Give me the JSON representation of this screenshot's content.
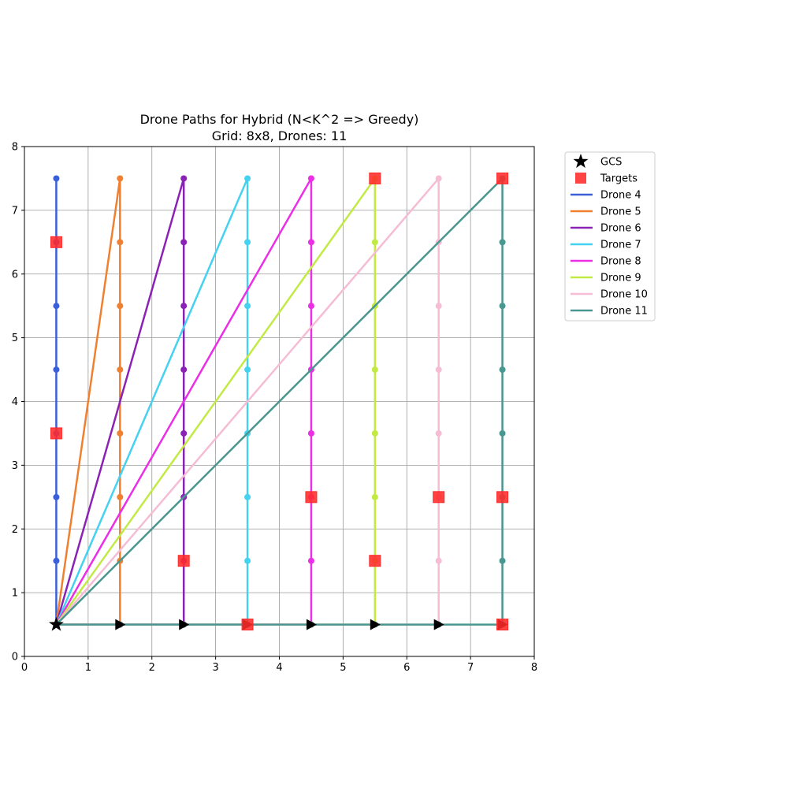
{
  "chart_data": {
    "type": "line",
    "title_line1": "Drone Paths for Hybrid (N<K^2 => Greedy)",
    "title_line2": "Grid: 8x8, Drones: 11",
    "xlabel": "",
    "ylabel": "",
    "xlim": [
      0,
      8
    ],
    "ylim": [
      0,
      8
    ],
    "x_ticks": [
      "0",
      "1",
      "2",
      "3",
      "4",
      "5",
      "6",
      "7",
      "8"
    ],
    "y_ticks": [
      "0",
      "1",
      "2",
      "3",
      "4",
      "5",
      "6",
      "7",
      "8"
    ],
    "grid": true,
    "legend_position": "outside-top-right",
    "gcs": {
      "label": "GCS",
      "x": 0.5,
      "y": 0.5,
      "color": "#000000"
    },
    "targets": {
      "label": "Targets",
      "color": "#ff2a2a",
      "points": [
        [
          0.5,
          6.5
        ],
        [
          0.5,
          3.5
        ],
        [
          2.5,
          1.5
        ],
        [
          3.5,
          0.5
        ],
        [
          4.5,
          2.5
        ],
        [
          5.5,
          7.5
        ],
        [
          5.5,
          1.5
        ],
        [
          6.5,
          2.5
        ],
        [
          7.5,
          7.5
        ],
        [
          7.5,
          2.5
        ],
        [
          7.5,
          0.5
        ]
      ]
    },
    "series": [
      {
        "name": "Drone 4",
        "color": "#3a5fd9",
        "points": [
          [
            0.5,
            0.5
          ],
          [
            0.5,
            1.5
          ],
          [
            0.5,
            2.5
          ],
          [
            0.5,
            3.5
          ],
          [
            0.5,
            4.5
          ],
          [
            0.5,
            5.5
          ],
          [
            0.5,
            6.5
          ],
          [
            0.5,
            7.5
          ]
        ]
      },
      {
        "name": "Drone 5",
        "color": "#f0802f",
        "points": [
          [
            0.5,
            0.5
          ],
          [
            1.5,
            0.5
          ],
          [
            1.5,
            1.5
          ],
          [
            1.5,
            2.5
          ],
          [
            1.5,
            3.5
          ],
          [
            1.5,
            4.5
          ],
          [
            1.5,
            5.5
          ],
          [
            1.5,
            6.5
          ],
          [
            1.5,
            7.5
          ],
          [
            0.5,
            0.5
          ]
        ]
      },
      {
        "name": "Drone 6",
        "color": "#8a22b5",
        "points": [
          [
            0.5,
            0.5
          ],
          [
            1.5,
            0.5
          ],
          [
            2.5,
            0.5
          ],
          [
            2.5,
            1.5
          ],
          [
            2.5,
            2.5
          ],
          [
            2.5,
            3.5
          ],
          [
            2.5,
            4.5
          ],
          [
            2.5,
            5.5
          ],
          [
            2.5,
            6.5
          ],
          [
            2.5,
            7.5
          ],
          [
            0.5,
            0.5
          ]
        ]
      },
      {
        "name": "Drone 7",
        "color": "#45d1f0",
        "points": [
          [
            0.5,
            0.5
          ],
          [
            1.5,
            0.5
          ],
          [
            2.5,
            0.5
          ],
          [
            3.5,
            0.5
          ],
          [
            3.5,
            1.5
          ],
          [
            3.5,
            2.5
          ],
          [
            3.5,
            3.5
          ],
          [
            3.5,
            4.5
          ],
          [
            3.5,
            5.5
          ],
          [
            3.5,
            6.5
          ],
          [
            3.5,
            7.5
          ],
          [
            0.5,
            0.5
          ]
        ]
      },
      {
        "name": "Drone 8",
        "color": "#ea2fe5",
        "points": [
          [
            0.5,
            0.5
          ],
          [
            1.5,
            0.5
          ],
          [
            2.5,
            0.5
          ],
          [
            3.5,
            0.5
          ],
          [
            4.5,
            0.5
          ],
          [
            4.5,
            1.5
          ],
          [
            4.5,
            2.5
          ],
          [
            4.5,
            3.5
          ],
          [
            4.5,
            4.5
          ],
          [
            4.5,
            5.5
          ],
          [
            4.5,
            6.5
          ],
          [
            4.5,
            7.5
          ],
          [
            0.5,
            0.5
          ]
        ]
      },
      {
        "name": "Drone 9",
        "color": "#c2ea45",
        "points": [
          [
            0.5,
            0.5
          ],
          [
            1.5,
            0.5
          ],
          [
            2.5,
            0.5
          ],
          [
            3.5,
            0.5
          ],
          [
            4.5,
            0.5
          ],
          [
            5.5,
            0.5
          ],
          [
            5.5,
            1.5
          ],
          [
            5.5,
            2.5
          ],
          [
            5.5,
            3.5
          ],
          [
            5.5,
            4.5
          ],
          [
            5.5,
            5.5
          ],
          [
            5.5,
            6.5
          ],
          [
            5.5,
            7.5
          ],
          [
            0.5,
            0.5
          ]
        ]
      },
      {
        "name": "Drone 10",
        "color": "#f5bcd4",
        "points": [
          [
            0.5,
            0.5
          ],
          [
            1.5,
            0.5
          ],
          [
            2.5,
            0.5
          ],
          [
            3.5,
            0.5
          ],
          [
            4.5,
            0.5
          ],
          [
            5.5,
            0.5
          ],
          [
            6.5,
            0.5
          ],
          [
            6.5,
            1.5
          ],
          [
            6.5,
            2.5
          ],
          [
            6.5,
            3.5
          ],
          [
            6.5,
            4.5
          ],
          [
            6.5,
            5.5
          ],
          [
            6.5,
            6.5
          ],
          [
            6.5,
            7.5
          ],
          [
            0.5,
            0.5
          ]
        ]
      },
      {
        "name": "Drone 11",
        "color": "#4a9690",
        "points": [
          [
            0.5,
            0.5
          ],
          [
            1.5,
            0.5
          ],
          [
            2.5,
            0.5
          ],
          [
            3.5,
            0.5
          ],
          [
            4.5,
            0.5
          ],
          [
            5.5,
            0.5
          ],
          [
            6.5,
            0.5
          ],
          [
            7.5,
            0.5
          ],
          [
            7.5,
            1.5
          ],
          [
            7.5,
            2.5
          ],
          [
            7.5,
            3.5
          ],
          [
            7.5,
            4.5
          ],
          [
            7.5,
            5.5
          ],
          [
            7.5,
            6.5
          ],
          [
            7.5,
            7.5
          ],
          [
            0.5,
            0.5
          ]
        ]
      }
    ],
    "direction_markers": {
      "color": "#000000",
      "points": [
        [
          1.5,
          0.5
        ],
        [
          2.5,
          0.5
        ],
        [
          3.5,
          0.5
        ],
        [
          4.5,
          0.5
        ],
        [
          5.5,
          0.5
        ],
        [
          6.5,
          0.5
        ],
        [
          7.5,
          0.5
        ]
      ]
    }
  }
}
